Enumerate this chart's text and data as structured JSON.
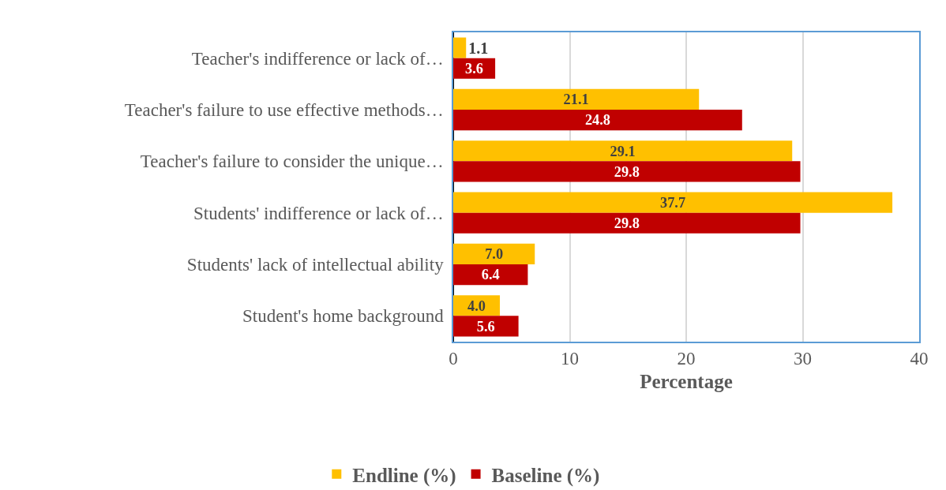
{
  "chart_data": {
    "type": "bar",
    "orientation": "horizontal",
    "xlabel": "Percentage",
    "categories": [
      "Teacher's indifference or lack of…",
      "Teacher's failure to use effective methods…",
      "Teacher's failure to consider the unique…",
      "Students' indifference or lack of…",
      "Students' lack of intellectual ability",
      "Student's home background"
    ],
    "series": [
      {
        "name": "Endline (%)",
        "color": "#ffc000",
        "values": [
          1.1,
          21.1,
          29.1,
          37.7,
          7.0,
          4.0
        ],
        "value_labels": [
          "1.1",
          "21.1",
          "29.1",
          "37.7",
          "7.0",
          "4.0"
        ]
      },
      {
        "name": "Baseline (%)",
        "color": "#c00000",
        "values": [
          3.6,
          24.8,
          29.8,
          29.8,
          6.4,
          5.6
        ],
        "value_labels": [
          "3.6",
          "24.8",
          "29.8",
          "29.8",
          "6.4",
          "5.6"
        ]
      }
    ],
    "xlim": [
      0,
      40
    ],
    "xticks": [
      0,
      10,
      20,
      30,
      40
    ],
    "grid": "x",
    "legend": "bottom"
  }
}
